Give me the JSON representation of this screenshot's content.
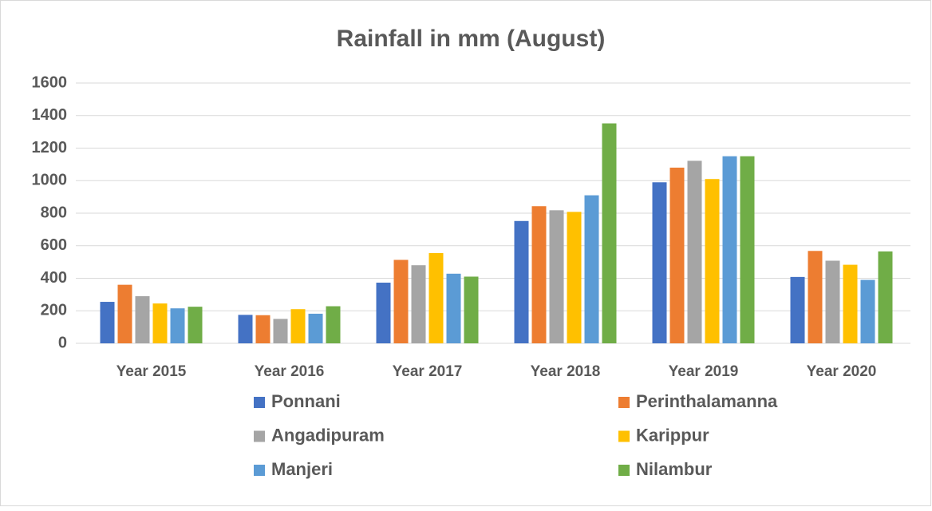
{
  "chart_data": {
    "type": "bar",
    "title": "Rainfall in mm (August)",
    "categories": [
      "Year 2015",
      "Year 2016",
      "Year 2017",
      "Year 2018",
      "Year 2019",
      "Year 2020"
    ],
    "series": [
      {
        "name": "Ponnani",
        "color": "#4472c4",
        "values": [
          255,
          175,
          373,
          752,
          990,
          408
        ]
      },
      {
        "name": "Perinthalamanna",
        "color": "#ed7d31",
        "values": [
          360,
          173,
          513,
          843,
          1080,
          568
        ]
      },
      {
        "name": "Angadipuram",
        "color": "#a5a5a5",
        "values": [
          290,
          150,
          480,
          818,
          1122,
          508
        ]
      },
      {
        "name": "Karippur",
        "color": "#ffc000",
        "values": [
          245,
          210,
          555,
          808,
          1010,
          483
        ]
      },
      {
        "name": "Manjeri",
        "color": "#5b9bd5",
        "values": [
          215,
          182,
          428,
          910,
          1150,
          390
        ]
      },
      {
        "name": "Nilambur",
        "color": "#70ad47",
        "values": [
          225,
          228,
          410,
          1352,
          1150,
          565
        ]
      }
    ],
    "ylim": [
      0,
      1600
    ],
    "yticks": [
      0,
      200,
      400,
      600,
      800,
      1000,
      1200,
      1400,
      1600
    ],
    "grid": true
  }
}
